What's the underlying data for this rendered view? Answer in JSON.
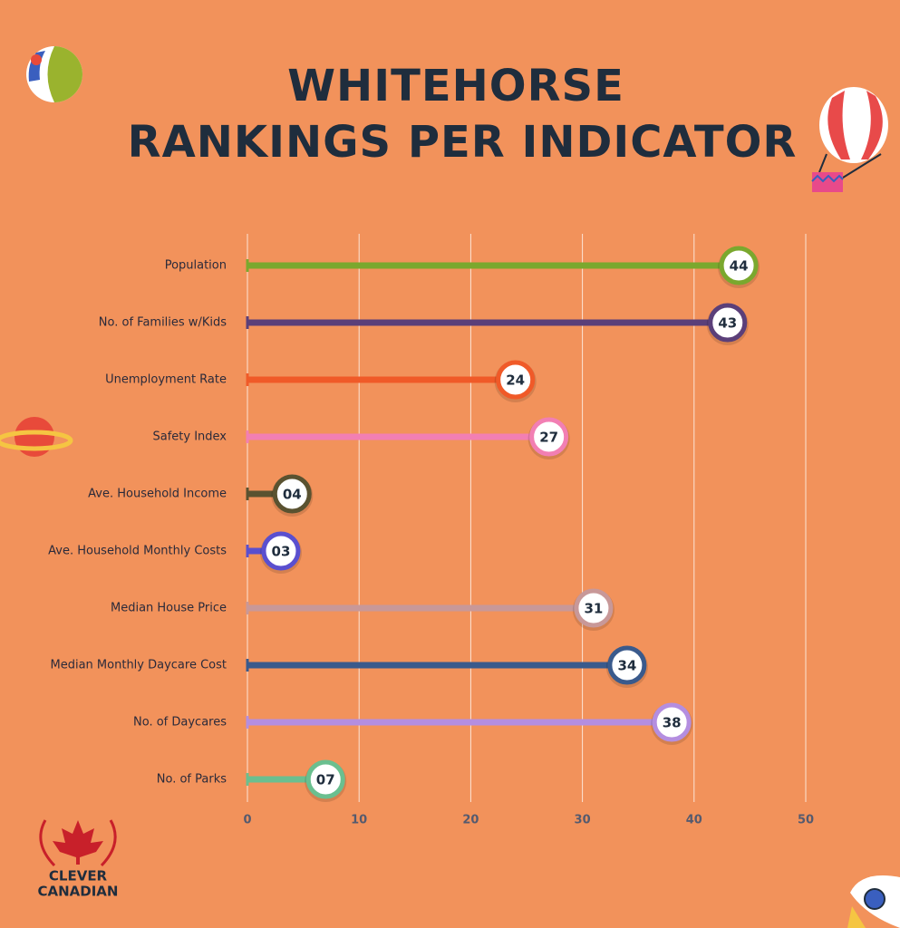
{
  "chart_data": {
    "type": "lollipop",
    "title": [
      "WHITEHORSE",
      "RANKINGS PER INDICATOR"
    ],
    "categories": [
      "Population",
      "No. of Families w/Kids",
      "Unemployment Rate",
      "Safety Index",
      "Ave. Household Income",
      "Ave. Household Monthly Costs",
      "Median House Price",
      "Median Monthly Daycare Cost",
      "No. of Daycares",
      "No. of Parks"
    ],
    "values": [
      44,
      43,
      24,
      27,
      4,
      3,
      31,
      34,
      38,
      7
    ],
    "value_labels": [
      "44",
      "43",
      "24",
      "27",
      "04",
      "03",
      "31",
      "34",
      "38",
      "07"
    ],
    "colors": [
      "#7aa82e",
      "#5b3f79",
      "#f05a28",
      "#f27fb3",
      "#5a5230",
      "#5a4fcf",
      "#c89898",
      "#3a5a8c",
      "#b48ee0",
      "#6abf8f"
    ],
    "xlim": [
      0,
      50
    ],
    "xticks": [
      0,
      10,
      20,
      30,
      40,
      50
    ],
    "grid": true,
    "logo": [
      "CLEVER",
      "CANADIAN"
    ]
  }
}
